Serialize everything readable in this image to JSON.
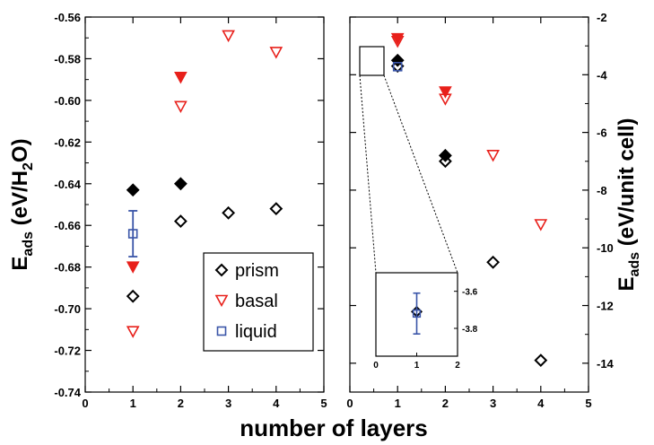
{
  "chart_data": [
    {
      "type": "scatter",
      "panel": "left",
      "xlim": [
        0,
        5
      ],
      "ylim": [
        -0.74,
        -0.56
      ],
      "x_ticks": [
        "0",
        "1",
        "2",
        "3",
        "4",
        "5"
      ],
      "y_ticks": [
        "-0.74",
        "-0.72",
        "-0.70",
        "-0.68",
        "-0.66",
        "-0.64",
        "-0.62",
        "-0.60",
        "-0.58",
        "-0.56"
      ],
      "ylabel": {
        "main": "E",
        "sub": "ads",
        "rest_before": " (eV/H",
        "sub2": "2",
        "rest_after": "O)"
      },
      "grid": false,
      "legend_position": "bottom-right",
      "series": [
        {
          "name": "prism",
          "marker": "diamond-open",
          "color": "#000000",
          "points": [
            {
              "x": 1,
              "y": -0.694
            },
            {
              "x": 2,
              "y": -0.658
            },
            {
              "x": 3,
              "y": -0.654
            },
            {
              "x": 4,
              "y": -0.652
            }
          ]
        },
        {
          "marker": "diamond-filled",
          "color": "#000000",
          "points": [
            {
              "x": 1,
              "y": -0.643
            },
            {
              "x": 2,
              "y": -0.64
            }
          ]
        },
        {
          "name": "basal",
          "marker": "triangle-down-open",
          "color": "#e8201b",
          "points": [
            {
              "x": 1,
              "y": -0.711
            },
            {
              "x": 2,
              "y": -0.603
            },
            {
              "x": 3,
              "y": -0.569
            },
            {
              "x": 4,
              "y": -0.577
            }
          ]
        },
        {
          "marker": "triangle-down-filled",
          "color": "#e8201b",
          "points": [
            {
              "x": 1,
              "y": -0.68
            },
            {
              "x": 2,
              "y": -0.589
            }
          ]
        },
        {
          "name": "liquid",
          "marker": "square-open",
          "color": "#3a55a8",
          "points": [
            {
              "x": 1,
              "y": -0.664,
              "yerr": 0.011
            }
          ]
        }
      ]
    },
    {
      "type": "scatter",
      "panel": "right",
      "xlim": [
        0,
        5
      ],
      "ylim": [
        -15,
        -2
      ],
      "x_ticks": [
        "0",
        "1",
        "2",
        "3",
        "4",
        "5"
      ],
      "y_ticks": [
        "-14",
        "-12",
        "-10",
        "-8",
        "-6",
        "-4",
        "-2"
      ],
      "ylabel": {
        "main": "E",
        "sub": "ads",
        "rest_before": " (eV/unit cell)"
      },
      "grid": false,
      "series": [
        {
          "marker": "diamond-open",
          "color": "#000000",
          "points": [
            {
              "x": 1,
              "y": -3.7
            },
            {
              "x": 2,
              "y": -7.0
            },
            {
              "x": 3,
              "y": -10.5
            },
            {
              "x": 4,
              "y": -13.9
            }
          ]
        },
        {
          "marker": "diamond-filled",
          "color": "#000000",
          "points": [
            {
              "x": 1,
              "y": -3.5
            },
            {
              "x": 2,
              "y": -6.8
            }
          ]
        },
        {
          "marker": "triangle-down-open",
          "color": "#e8201b",
          "points": [
            {
              "x": 1,
              "y": -2.85
            },
            {
              "x": 2,
              "y": -4.85
            },
            {
              "x": 3,
              "y": -6.8
            },
            {
              "x": 4,
              "y": -9.2
            }
          ]
        },
        {
          "marker": "triangle-down-filled",
          "color": "#e8201b",
          "points": [
            {
              "x": 1,
              "y": -2.75
            },
            {
              "x": 2,
              "y": -4.6
            }
          ]
        },
        {
          "marker": "square-open",
          "color": "#3a55a8",
          "points": [
            {
              "x": 1,
              "y": -3.72
            }
          ]
        }
      ],
      "inset": {
        "xlim": [
          0,
          2
        ],
        "ylim": [
          -3.95,
          -3.5
        ],
        "x_ticks": [
          "0",
          "1",
          "2"
        ],
        "y_ticks": [
          "-3.6",
          "-3.8"
        ],
        "series": [
          {
            "marker": "diamond-open",
            "color": "#000000",
            "points": [
              {
                "x": 1,
                "y": -3.71
              }
            ]
          },
          {
            "marker": "square-open",
            "color": "#3a55a8",
            "points": [
              {
                "x": 1,
                "y": -3.72,
                "yerr": 0.11
              }
            ]
          }
        ]
      }
    }
  ],
  "shared_xlabel": "number of layers",
  "colors": {
    "prism": "#000000",
    "basal": "#e8201b",
    "liquid": "#3a55a8"
  }
}
